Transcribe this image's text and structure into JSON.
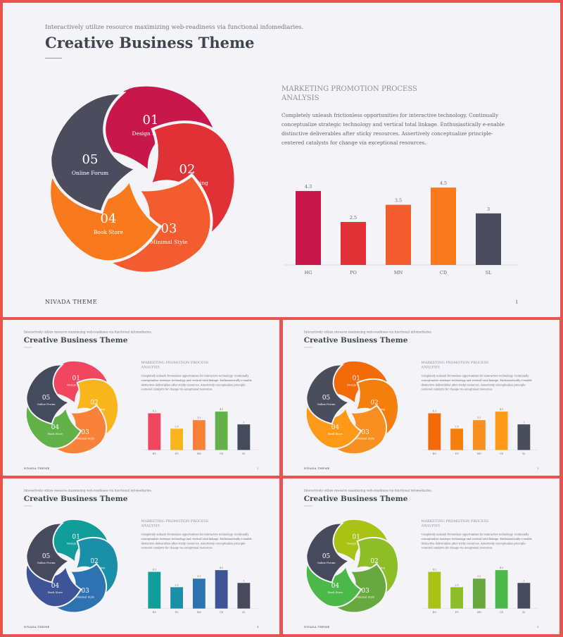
{
  "slides": [
    {
      "id": "main",
      "page": "1",
      "colors": [
        "#c8174a",
        "#e03236",
        "#f25c2e",
        "#f97a1d",
        "#4b4c5e"
      ]
    },
    {
      "id": "thumb-1",
      "page": "2",
      "colors": [
        "#f04660",
        "#f8b61c",
        "#f8823a",
        "#63b149",
        "#444b5c"
      ]
    },
    {
      "id": "thumb-2",
      "page": "3",
      "colors": [
        "#f36a0a",
        "#f47f0c",
        "#f79020",
        "#ff9a18",
        "#4a4d5c"
      ]
    },
    {
      "id": "thumb-3",
      "page": "4",
      "colors": [
        "#119e9a",
        "#1a8fa8",
        "#2d73b2",
        "#3e5496",
        "#464a5c"
      ]
    },
    {
      "id": "thumb-4",
      "page": "5",
      "colors": [
        "#a8c313",
        "#8dbd27",
        "#68a93f",
        "#4db84a",
        "#464a5c"
      ]
    }
  ],
  "common": {
    "subtitle": "Interactively utilize resource maximizing web-readiness via functional infomediaries.",
    "title": "Creative Business Theme",
    "footer": "NIVADA THEME",
    "section_title": "MARKETING PROMOTION PROCESS ANALYSIS",
    "section_body": "Completely unleash frictionless opportunities for interactive technology. Continually conceptualize strategic technology and vertical total linkage. Enthusiastically e-enable distinctive deliverables after sticky resources. Assertively conceptualize principle-centered catalysts for change via exceptional resources.",
    "cycle": [
      {
        "num": "01",
        "label": "Design Identy"
      },
      {
        "num": "02",
        "label": "Web Consulting"
      },
      {
        "num": "03",
        "label": "Minimal Style"
      },
      {
        "num": "04",
        "label": "Book Store"
      },
      {
        "num": "05",
        "label": "Online Forum"
      }
    ]
  },
  "chart_data": {
    "type": "bar",
    "categories": [
      "HG",
      "PO",
      "MN",
      "CD",
      "SL"
    ],
    "values": [
      4.3,
      2.5,
      3.5,
      4.5,
      3
    ],
    "value_labels": [
      "4.3",
      "2.5",
      "3.5",
      "4.5",
      "3"
    ],
    "ylim": [
      0,
      5
    ],
    "grid": false,
    "legend": "none"
  }
}
